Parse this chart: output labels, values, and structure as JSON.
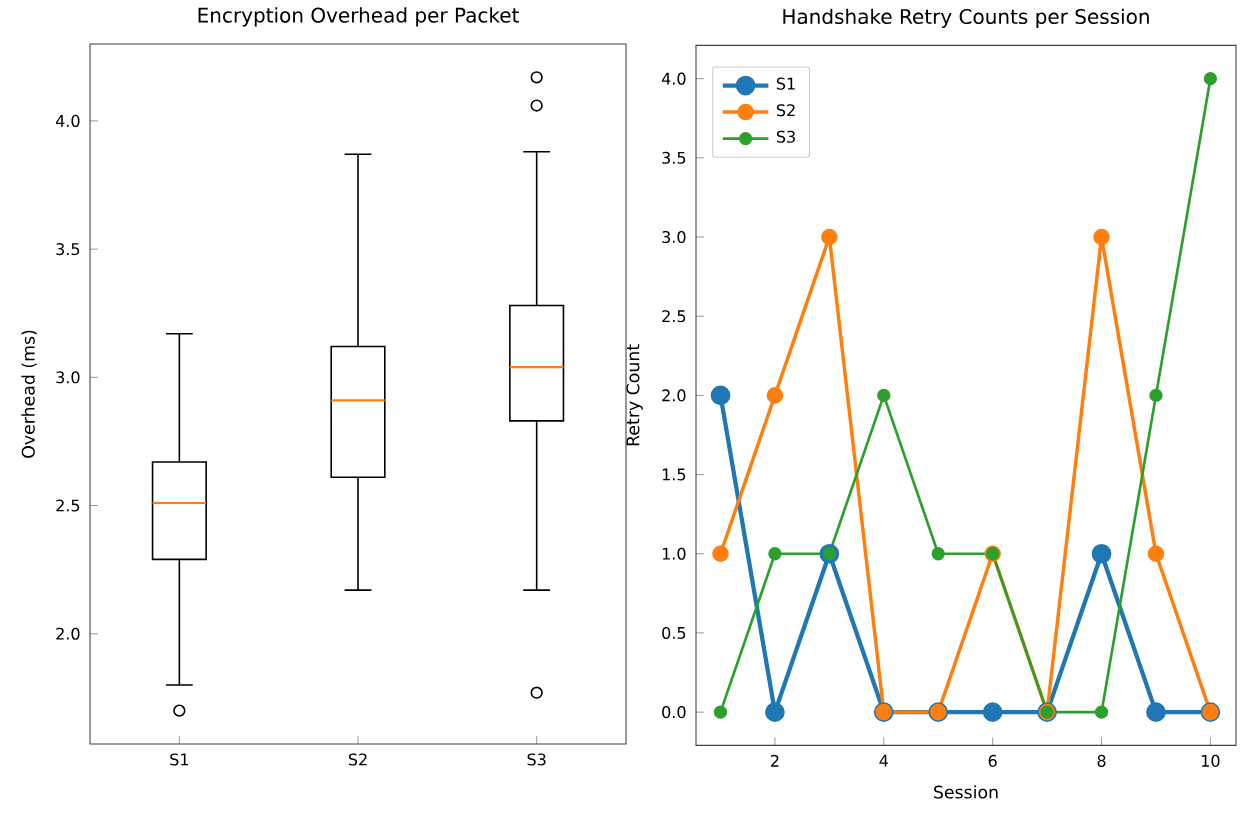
{
  "chart_data": [
    {
      "type": "box",
      "title": "Encryption Overhead per Packet",
      "ylabel": "Overhead (ms)",
      "categories": [
        "S1",
        "S2",
        "S3"
      ],
      "boxes": [
        {
          "low": 1.8,
          "q1": 2.29,
          "median": 2.51,
          "q3": 2.67,
          "high": 3.17,
          "outliers": [
            1.7
          ]
        },
        {
          "low": 2.17,
          "q1": 2.61,
          "median": 2.91,
          "q3": 3.12,
          "high": 3.87
        },
        {
          "low": 2.17,
          "q1": 2.83,
          "median": 3.04,
          "q3": 3.28,
          "high": 3.88,
          "outliers": [
            1.77,
            4.06,
            4.17
          ]
        }
      ],
      "color": "#000000",
      "ylim": [
        1.57,
        4.3
      ],
      "yticks": [
        {
          "value": 2.0,
          "label": "2.0"
        },
        {
          "value": 2.5,
          "label": "2.5"
        },
        {
          "value": 3.0,
          "label": "3.0"
        },
        {
          "value": 3.5,
          "label": "3.5"
        },
        {
          "value": 4.0,
          "label": "4.0"
        }
      ],
      "grid": false
    },
    {
      "type": "line",
      "title": "Handshake Retry Counts per Session",
      "xlabel": "Session",
      "ylabel": "Retry Count",
      "x": [
        1,
        2,
        3,
        4,
        5,
        6,
        7,
        8,
        9,
        10
      ],
      "series": [
        {
          "name": "S1",
          "color": "#1f77b4",
          "values": [
            2,
            0,
            1,
            0,
            0,
            0,
            0,
            1,
            0,
            0
          ]
        },
        {
          "name": "S2",
          "color": "#ff7f0e",
          "values": [
            1,
            2,
            3,
            0,
            0,
            1,
            0,
            3,
            1,
            0
          ]
        },
        {
          "name": "S3",
          "color": "#2ca02c",
          "values": [
            0,
            1,
            1,
            2,
            1,
            1,
            0,
            0,
            2,
            4
          ]
        }
      ],
      "xlim": [
        0.55,
        10.47
      ],
      "ylim": [
        -0.21,
        4.21
      ],
      "xticks": [
        2,
        4,
        6,
        8,
        10
      ],
      "yticks": [
        {
          "value": 0.0,
          "label": "0.0"
        },
        {
          "value": 0.5,
          "label": "0.5"
        },
        {
          "value": 1.0,
          "label": "1.0"
        },
        {
          "value": 1.5,
          "label": "1.5"
        },
        {
          "value": 2.0,
          "label": "2.0"
        },
        {
          "value": 2.5,
          "label": "2.5"
        },
        {
          "value": 3.0,
          "label": "3.0"
        },
        {
          "value": 3.5,
          "label": "3.5"
        },
        {
          "value": 4.0,
          "label": "4.0"
        }
      ],
      "marker": "circle",
      "line_style": "solid",
      "legend": "top left",
      "grid": false
    }
  ]
}
